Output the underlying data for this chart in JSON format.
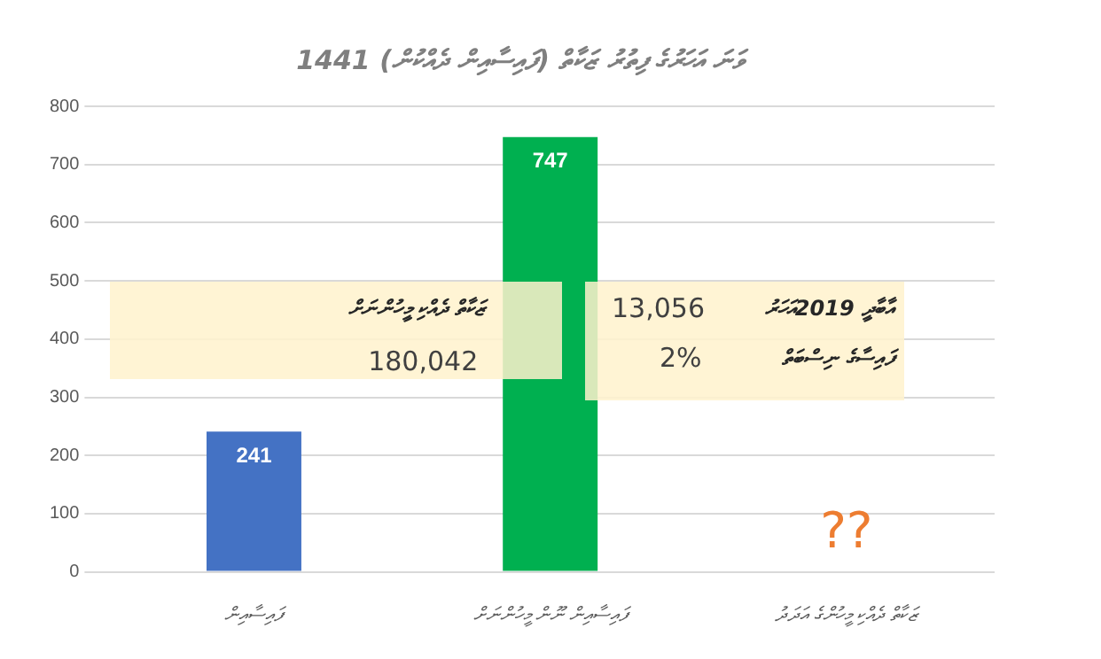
{
  "chart_data": {
    "type": "bar",
    "title": "1441 ވަނަ އަހަރުގެ ފިތުރު ޒަކާތް (ފައިސާއިން ދެއްކުން)",
    "categories": [
      "ފައިސާއިން",
      "ފައިސާއިން ނޫން މީހުންނަށް",
      "ޒަކާތް ދެއްކި މީހުންގެ އަދަދު"
    ],
    "values": [
      241,
      747,
      null
    ],
    "colors": [
      "#4472c4",
      "#00b050",
      null
    ],
    "ylim": [
      0,
      800
    ],
    "yticks": [
      0,
      100,
      200,
      300,
      400,
      500,
      600,
      700,
      800
    ],
    "grid": "y",
    "data_labels": true,
    "annotations": [
      "ޒަކާތް ދެއްކި މީހުންނަށް",
      "180,042",
      "އާބާދީ 2019އަހަރު",
      "13,056",
      "ފައިސާގެ ނިސްބަތް",
      "2%",
      "??"
    ]
  }
}
